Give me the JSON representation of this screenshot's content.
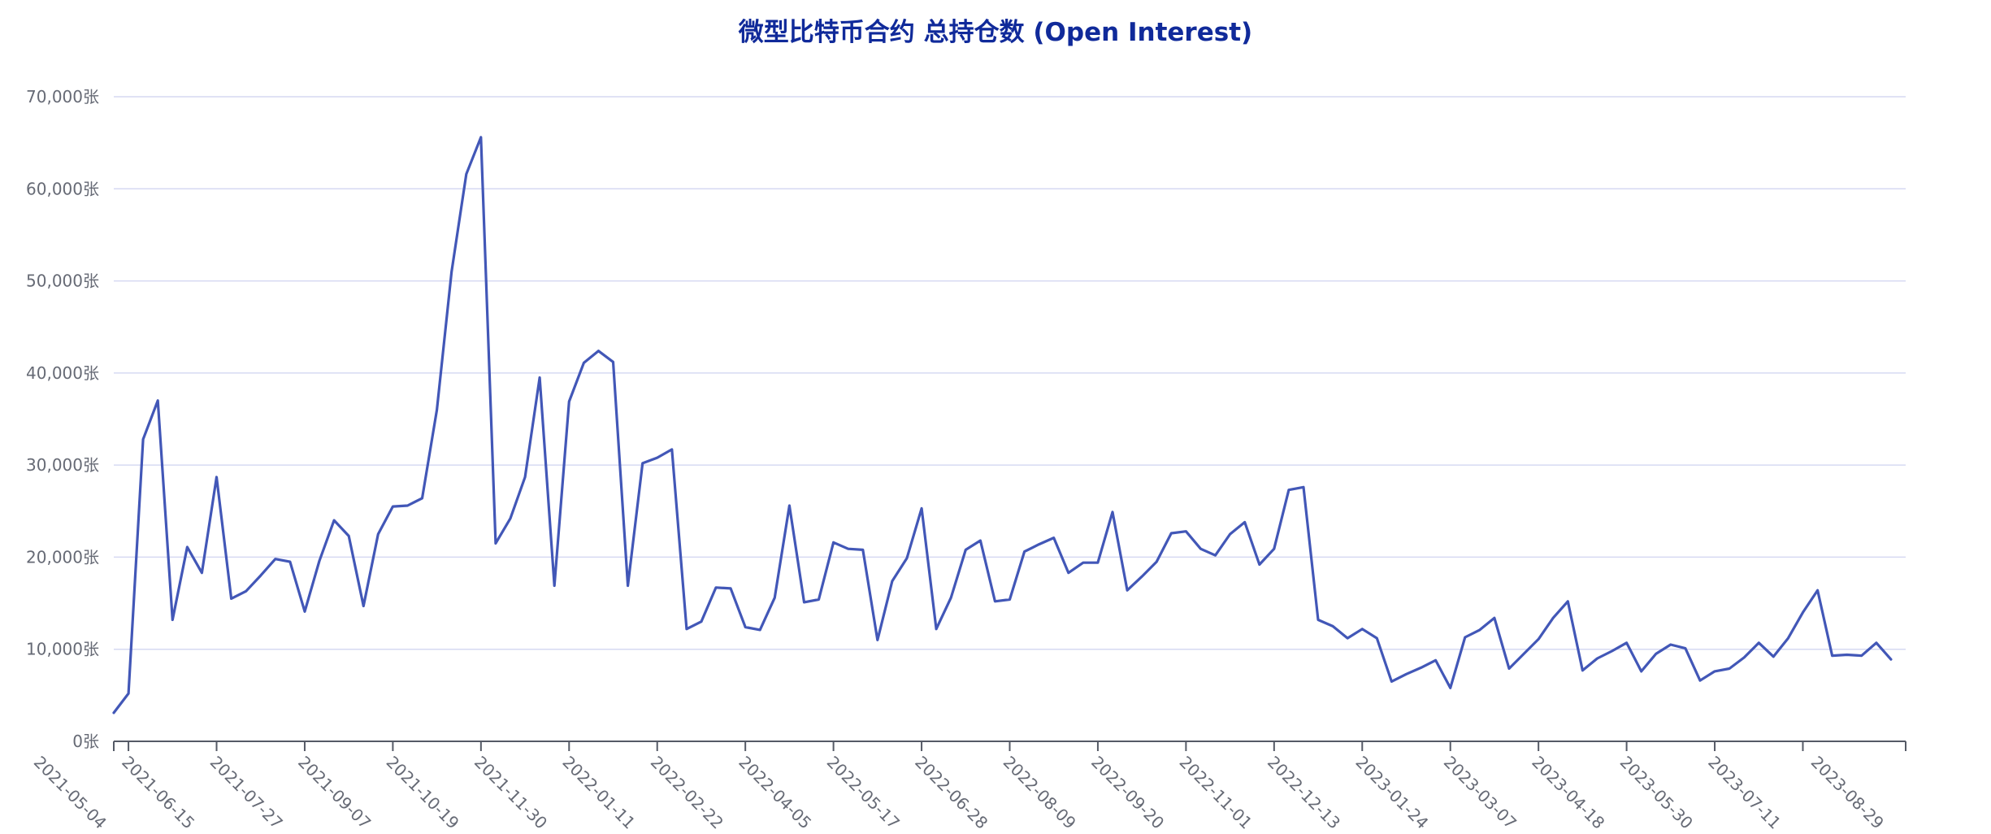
{
  "chart_data": {
    "type": "line",
    "title": "微型比特币合约 总持仓数 (Open Interest)",
    "xlabel": "",
    "ylabel": "",
    "y_unit_suffix": "张",
    "ylim": [
      0,
      70000
    ],
    "yticks": [
      0,
      10000,
      20000,
      30000,
      40000,
      50000,
      60000,
      70000
    ],
    "y_tick_labels": [
      "0张",
      "10,000张",
      "20,000张",
      "30,000张",
      "40,000张",
      "50,000张",
      "60,000张",
      "70,000张"
    ],
    "x_tick_labels": [
      "2021-05-04",
      "2021-06-15",
      "2021-07-27",
      "2021-09-07",
      "2021-10-19",
      "2021-11-30",
      "2022-01-11",
      "2022-02-22",
      "2022-04-05",
      "2022-05-17",
      "2022-06-28",
      "2022-08-09",
      "2022-09-20",
      "2022-11-01",
      "2022-12-13",
      "2023-01-24",
      "2023-03-07",
      "2023-04-18",
      "2023-05-30",
      "2023-07-11",
      "2023-08-29"
    ],
    "grid": true,
    "legend": "none",
    "colors": {
      "line": "#4257b7",
      "title": "#102a9a",
      "grid": "#d6d9f2",
      "axis": "#555a66",
      "tick_text": "#666a75"
    },
    "x": [
      "2021-04-27",
      "2021-05-04",
      "2021-05-11",
      "2021-05-18",
      "2021-05-25",
      "2021-06-01",
      "2021-06-08",
      "2021-06-15",
      "2021-06-22",
      "2021-06-29",
      "2021-07-06",
      "2021-07-13",
      "2021-07-20",
      "2021-07-27",
      "2021-08-03",
      "2021-08-10",
      "2021-08-17",
      "2021-08-24",
      "2021-08-31",
      "2021-09-07",
      "2021-09-14",
      "2021-09-21",
      "2021-09-28",
      "2021-10-05",
      "2021-10-12",
      "2021-10-19",
      "2021-10-26",
      "2021-11-02",
      "2021-11-09",
      "2021-11-16",
      "2021-11-23",
      "2021-11-30",
      "2021-12-07",
      "2021-12-14",
      "2021-12-21",
      "2021-12-28",
      "2022-01-04",
      "2022-01-11",
      "2022-01-18",
      "2022-01-25",
      "2022-02-01",
      "2022-02-08",
      "2022-02-15",
      "2022-02-22",
      "2022-03-01",
      "2022-03-08",
      "2022-03-15",
      "2022-03-22",
      "2022-03-29",
      "2022-04-05",
      "2022-04-12",
      "2022-04-19",
      "2022-04-26",
      "2022-05-03",
      "2022-05-10",
      "2022-05-17",
      "2022-05-24",
      "2022-05-31",
      "2022-06-07",
      "2022-06-14",
      "2022-06-21",
      "2022-06-28",
      "2022-07-05",
      "2022-07-12",
      "2022-07-19",
      "2022-07-26",
      "2022-08-02",
      "2022-08-09",
      "2022-08-16",
      "2022-08-23",
      "2022-08-30",
      "2022-09-06",
      "2022-09-13",
      "2022-09-20",
      "2022-09-27",
      "2022-10-04",
      "2022-10-11",
      "2022-10-18",
      "2022-10-25",
      "2022-11-01",
      "2022-11-08",
      "2022-11-15",
      "2022-11-22",
      "2022-11-29",
      "2022-12-06",
      "2022-12-13",
      "2022-12-20",
      "2022-12-27",
      "2023-01-03",
      "2023-01-10",
      "2023-01-17",
      "2023-01-24",
      "2023-01-31",
      "2023-02-07",
      "2023-02-14",
      "2023-02-21",
      "2023-02-28",
      "2023-03-07",
      "2023-03-14",
      "2023-03-21",
      "2023-03-28",
      "2023-04-04",
      "2023-04-11",
      "2023-04-18",
      "2023-04-25",
      "2023-05-02",
      "2023-05-09",
      "2023-05-16",
      "2023-05-23",
      "2023-05-30",
      "2023-06-06",
      "2023-06-13",
      "2023-06-20",
      "2023-06-27",
      "2023-07-04",
      "2023-07-11",
      "2023-07-18",
      "2023-07-25",
      "2023-08-01",
      "2023-08-08",
      "2023-08-15",
      "2023-08-22"
    ],
    "series": [
      {
        "values": [
          3100,
          5200,
          32800,
          37000,
          13200,
          21100,
          18300,
          28700,
          15500,
          16300,
          18000,
          19800,
          19500,
          14100,
          19600,
          24000,
          22300,
          14700,
          22500,
          25500,
          25600,
          26400,
          36000,
          51000,
          61600,
          65600,
          21500,
          24200,
          28700,
          39500,
          16900,
          36900,
          41100,
          42400,
          41200,
          16900,
          30200,
          30800,
          31700,
          12200,
          13000,
          16700,
          16600,
          12400,
          12100,
          15600,
          25600,
          15100,
          15400,
          21600,
          20900,
          20800,
          11000,
          17400,
          19900,
          25300,
          12200,
          15600,
          20800,
          21800,
          15200,
          15400,
          20600,
          21400,
          22100,
          18300,
          19400,
          19400,
          24900,
          16400,
          17900,
          19500,
          22600,
          22800,
          20900,
          20200,
          22500,
          23800,
          19200,
          20900,
          27300,
          27600,
          13200,
          12500,
          11200,
          12200,
          11200,
          6500,
          7300,
          8000,
          8800,
          5800,
          11300,
          12100,
          13400,
          7900,
          9500,
          11100,
          13400,
          15200,
          7700,
          9000,
          9800,
          10700,
          7600,
          9500,
          10500,
          10100,
          6600,
          7600,
          7900,
          9100,
          10700,
          9200,
          11200,
          14000,
          16400,
          9300,
          9400,
          9300,
          10700,
          8900
        ]
      }
    ]
  }
}
